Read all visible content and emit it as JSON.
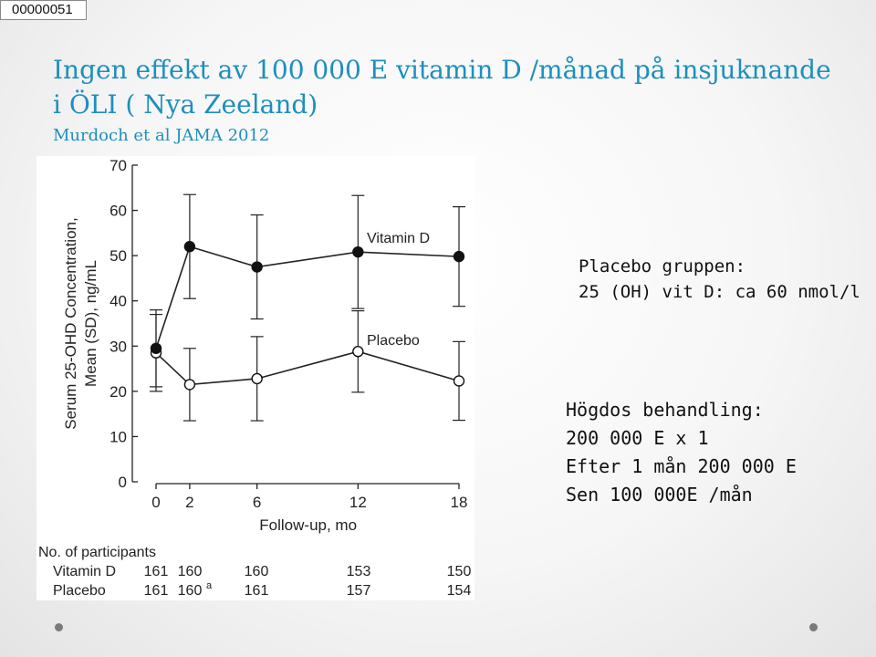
{
  "slide": {
    "id_label": "00000051",
    "title_line1": "Ingen effekt av 100 000 E vitamin D /månad på insjuknande",
    "title_line2": "i ÖLI ( Nya Zeeland)",
    "subtitle": "Murdoch et al JAMA 2012",
    "accent_color": "#1d8fbd"
  },
  "notes": {
    "placebo_title": "Placebo gruppen:",
    "placebo_value": "25 (OH) vit D: ca 60 nmol/l",
    "dose_title": "Högdos behandling:",
    "dose_line1": "200 000 E x 1",
    "dose_line2": "Efter 1 mån 200 000 E",
    "dose_line3": "Sen 100 000E /mån"
  },
  "chart_data": {
    "type": "line",
    "ylabel_line1": "Serum 25-OHD Concentration,",
    "ylabel_line2": "Mean (SD), ng/mL",
    "xlabel": "Follow-up, mo",
    "ylim": [
      0,
      70
    ],
    "yticks": [
      0,
      10,
      20,
      30,
      40,
      50,
      60,
      70
    ],
    "x": [
      0,
      2,
      6,
      12,
      18
    ],
    "series": [
      {
        "name": "Vitamin D",
        "label": "Vitamin D",
        "marker": "filled",
        "values": [
          29.5,
          52,
          47.5,
          50.8,
          49.8
        ],
        "sd": [
          8.5,
          11.5,
          11.5,
          12.5,
          11
        ]
      },
      {
        "name": "Placebo",
        "label": "Placebo",
        "marker": "open",
        "values": [
          28.5,
          21.5,
          22.8,
          28.8,
          22.3
        ],
        "sd": [
          8.5,
          8,
          9.3,
          9,
          8.7
        ]
      }
    ],
    "participants": {
      "header": "No. of participants",
      "rows": [
        {
          "label": "Vitamin D",
          "values": [
            "161",
            "160",
            "160",
            "153",
            "150"
          ]
        },
        {
          "label": "Placebo",
          "values": [
            "161",
            "160",
            "161",
            "157",
            "154"
          ],
          "superscripts": [
            "",
            "a",
            "",
            "",
            ""
          ]
        }
      ]
    }
  }
}
